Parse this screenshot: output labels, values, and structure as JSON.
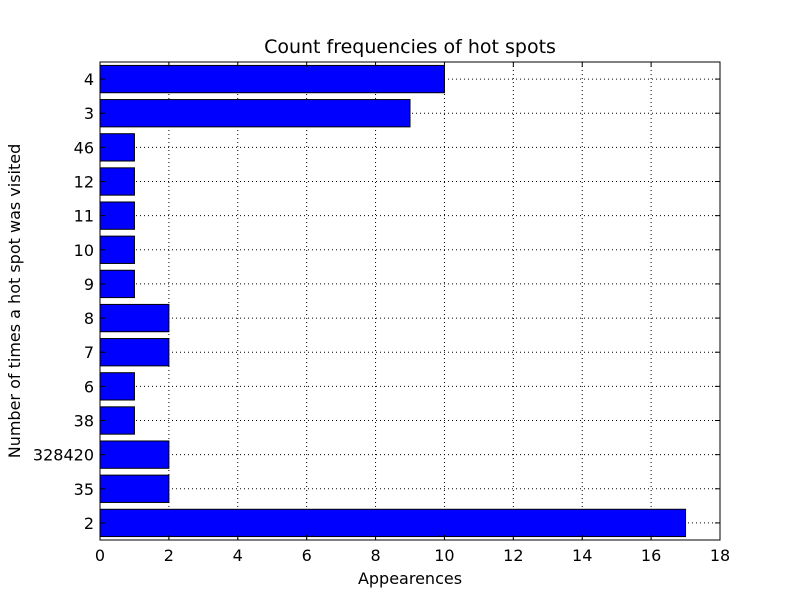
{
  "chart_data": {
    "type": "bar",
    "orientation": "horizontal",
    "title": "Count frequencies of hot spots",
    "xlabel": "Appearences",
    "ylabel": "Number of times a hot spot was visited",
    "categories": [
      "4",
      "3",
      "46",
      "12",
      "11",
      "10",
      "9",
      "8",
      "7",
      "6",
      "38",
      "328420",
      "35",
      "2"
    ],
    "values": [
      10,
      9,
      1,
      1,
      1,
      1,
      1,
      2,
      2,
      1,
      1,
      2,
      2,
      17
    ],
    "xlim": [
      0,
      18
    ],
    "xticks": [
      0,
      2,
      4,
      6,
      8,
      10,
      12,
      14,
      16,
      18
    ],
    "grid": true,
    "bar_color": "#0000ff"
  }
}
